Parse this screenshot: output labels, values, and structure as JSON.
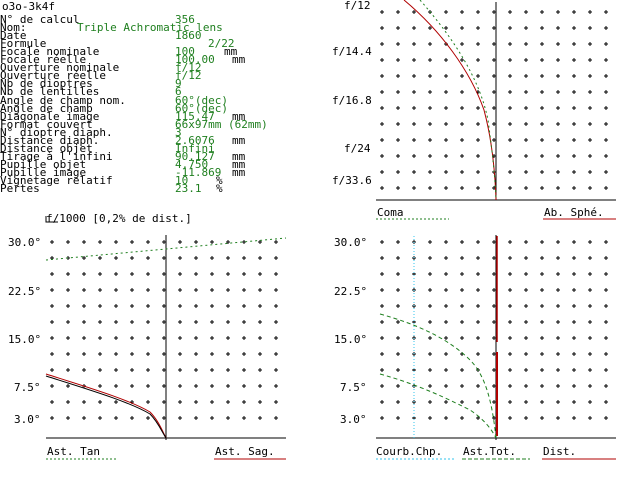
{
  "window": {
    "title": "o3o-3k4f"
  },
  "params": [
    {
      "label": "N° de calcul",
      "value": "356",
      "unit": ""
    },
    {
      "label": "Nom:",
      "value": "Triple Achromatic lens",
      "unit": ""
    },
    {
      "label": "Date",
      "value": "1860",
      "unit": ""
    },
    {
      "label": "Formule",
      "value": "2/22",
      "unit": ""
    },
    {
      "label": "Focale nominale",
      "value": "100",
      "unit": "mm"
    },
    {
      "label": "Focale réelle",
      "value": "100.00",
      "unit": "mm"
    },
    {
      "label": "Ouverture nominale",
      "value": "f/12",
      "unit": ""
    },
    {
      "label": "Ouverture réelle",
      "value": "f/12",
      "unit": ""
    },
    {
      "label": "Nb de dioptres",
      "value": "9",
      "unit": ""
    },
    {
      "label": "Nb de lentilles",
      "value": "6",
      "unit": ""
    },
    {
      "label": "Angle de champ nom.",
      "value": "60°(dec)",
      "unit": ""
    },
    {
      "label": "Angle de champ",
      "value": "60°(dec)",
      "unit": ""
    },
    {
      "label": "Diagonale image",
      "value": "115.47",
      "unit": "mm"
    },
    {
      "label": "Format couvert",
      "value": "66x97mm (62mm)",
      "unit": ""
    },
    {
      "label": "N° dioptre diaph.",
      "value": "3",
      "unit": ""
    },
    {
      "label": "Distance diaph.",
      "value": "2.6076",
      "unit": "mm"
    },
    {
      "label": "Distance objet",
      "value": "Infini",
      "unit": ""
    },
    {
      "label": "Tirage à l'infini",
      "value": "90.127",
      "unit": "mm"
    },
    {
      "label": "Pupille objet",
      "value": "4.750",
      "unit": "mm"
    },
    {
      "label": "Pupille image",
      "value": "-11.869",
      "unit": "mm"
    },
    {
      "label": "Vignetage relatif",
      "value": "10",
      "unit": "%"
    },
    {
      "label": "Pertes",
      "value": "23.1",
      "unit": "%"
    }
  ],
  "panels": {
    "aperture": {
      "ticks": [
        "f/12",
        "f/14.4",
        "f/16.8",
        "f/24",
        "f/33.6"
      ],
      "legend_left": "Coma",
      "legend_right": "Ab. Sphé."
    },
    "field_left": {
      "caption": "f/1000 [0,2% de dist.]",
      "ticks": [
        "30.0°",
        "22.5°",
        "15.0°",
        "7.5°",
        "3.0°"
      ],
      "legend_left": "Ast. Tan",
      "legend_right": "Ast. Sag."
    },
    "field_right": {
      "ticks": [
        "30.0°",
        "22.5°",
        "15.0°",
        "7.5°",
        "3.0°"
      ],
      "legend_1": "Courb.Chp.",
      "legend_2": "Ast.Tot.",
      "legend_3": "Dist."
    }
  },
  "colors": {
    "label": "#000000",
    "value": "#1f7f1f",
    "red": "#b00000",
    "cyan": "#33c6ee",
    "dotgreen": "#1f7f1f"
  }
}
